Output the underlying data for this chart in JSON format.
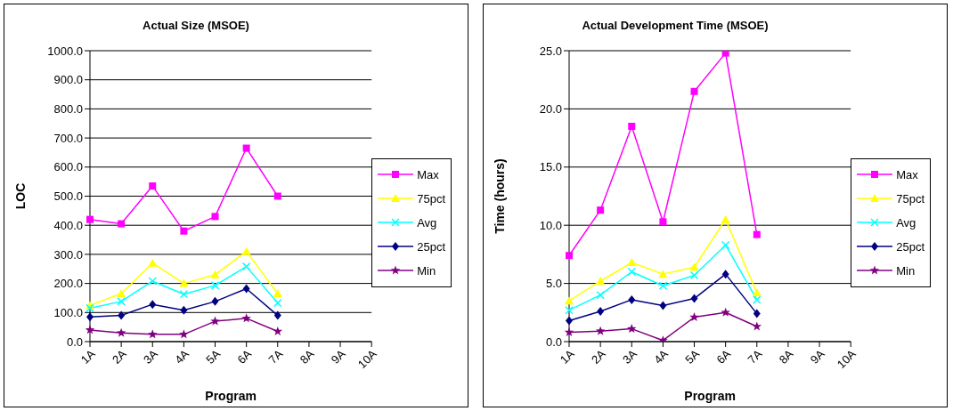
{
  "chart_data": [
    {
      "type": "line",
      "title": "Actual Size (MSOE)",
      "xlabel": "Program",
      "ylabel": "LOC",
      "categories": [
        "1A",
        "2A",
        "3A",
        "4A",
        "5A",
        "6A",
        "7A",
        "8A",
        "9A",
        "10A"
      ],
      "series": [
        {
          "name": "Max",
          "color": "#ff00ff",
          "marker": "square",
          "values": [
            420,
            405,
            535,
            380,
            430,
            665,
            500,
            null,
            null,
            null
          ]
        },
        {
          "name": "75pct",
          "color": "#ffff00",
          "marker": "triangle",
          "values": [
            125,
            165,
            270,
            200,
            230,
            310,
            165,
            null,
            null,
            null
          ]
        },
        {
          "name": "Avg",
          "color": "#00ffff",
          "marker": "cross",
          "values": [
            115,
            138,
            208,
            163,
            193,
            258,
            133,
            null,
            null,
            null
          ]
        },
        {
          "name": "25pct",
          "color": "#000080",
          "marker": "diamond",
          "values": [
            85,
            90,
            128,
            108,
            138,
            182,
            90,
            null,
            null,
            null
          ]
        },
        {
          "name": "Min",
          "color": "#800080",
          "marker": "star",
          "values": [
            40,
            30,
            25,
            25,
            70,
            80,
            35,
            null,
            null,
            null
          ]
        }
      ],
      "ylim": [
        0,
        1000
      ],
      "yticks": [
        {
          "value": 0,
          "label": "0.0"
        },
        {
          "value": 100,
          "label": "100.0"
        },
        {
          "value": 200,
          "label": "200.0"
        },
        {
          "value": 300,
          "label": "300.0"
        },
        {
          "value": 400,
          "label": "400.0"
        },
        {
          "value": 500,
          "label": "500.0"
        },
        {
          "value": 600,
          "label": "600.0"
        },
        {
          "value": 700,
          "label": "700.0"
        },
        {
          "value": 800,
          "label": "800.0"
        },
        {
          "value": 900,
          "label": "900.0"
        },
        {
          "value": 1000,
          "label": "1000.0"
        }
      ],
      "grid": "y",
      "legend": "right"
    },
    {
      "type": "line",
      "title": "Actual Development Time (MSOE)",
      "xlabel": "Program",
      "ylabel": "Time (hours)",
      "categories": [
        "1A",
        "2A",
        "3A",
        "4A",
        "5A",
        "6A",
        "7A",
        "8A",
        "9A",
        "10A"
      ],
      "series": [
        {
          "name": "Max",
          "color": "#ff00ff",
          "marker": "square",
          "values": [
            7.4,
            11.3,
            18.5,
            10.3,
            21.5,
            24.8,
            9.2,
            null,
            null,
            null
          ]
        },
        {
          "name": "75pct",
          "color": "#ffff00",
          "marker": "triangle",
          "values": [
            3.5,
            5.2,
            6.8,
            5.8,
            6.4,
            10.5,
            4.2,
            null,
            null,
            null
          ]
        },
        {
          "name": "Avg",
          "color": "#00ffff",
          "marker": "cross",
          "values": [
            2.7,
            4.0,
            6.0,
            4.8,
            5.7,
            8.3,
            3.6,
            null,
            null,
            null
          ]
        },
        {
          "name": "25pct",
          "color": "#000080",
          "marker": "diamond",
          "values": [
            1.8,
            2.6,
            3.6,
            3.1,
            3.7,
            5.8,
            2.4,
            null,
            null,
            null
          ]
        },
        {
          "name": "Min",
          "color": "#800080",
          "marker": "star",
          "values": [
            0.8,
            0.9,
            1.1,
            0.1,
            2.1,
            2.5,
            1.3,
            null,
            null,
            null
          ]
        }
      ],
      "ylim": [
        0,
        25
      ],
      "yticks": [
        {
          "value": 0,
          "label": "0.0"
        },
        {
          "value": 5,
          "label": "5.0"
        },
        {
          "value": 10,
          "label": "10.0"
        },
        {
          "value": 15,
          "label": "15.0"
        },
        {
          "value": 20,
          "label": "20.0"
        },
        {
          "value": 25,
          "label": "25.0"
        }
      ],
      "grid": "y",
      "legend": "right"
    }
  ]
}
